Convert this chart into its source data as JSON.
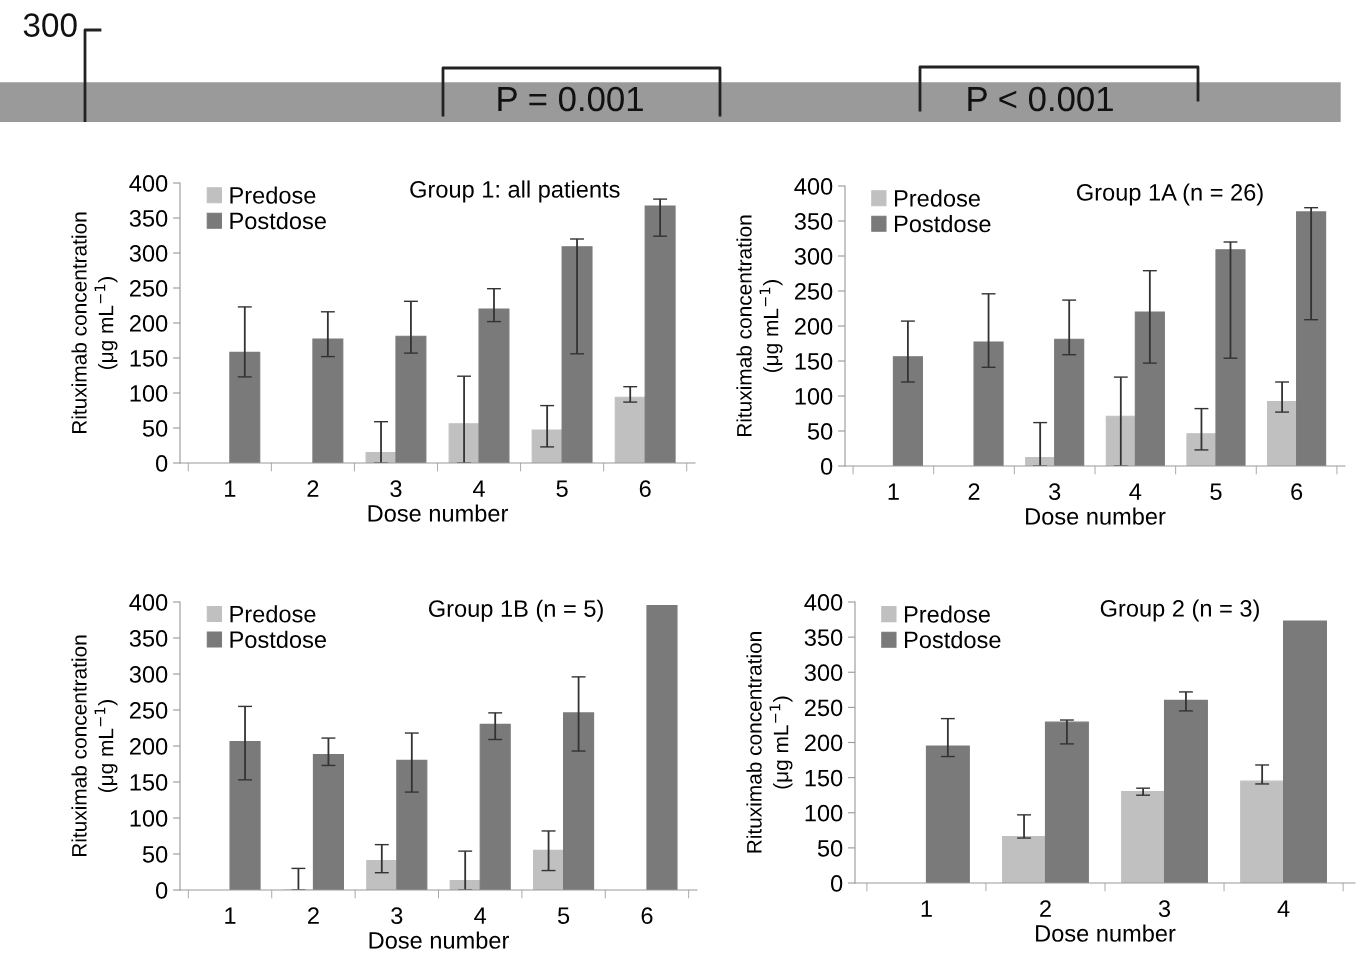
{
  "chart_data": [
    {
      "type": "other",
      "annotations": [
        "300",
        "P = 0.001",
        "P < 0.001"
      ]
    },
    {
      "type": "bar",
      "title": "Group 1: all patients",
      "xlabel": "Dose number",
      "ylabel": "Rituximab concentration\n(μg mL$^{−1}$)",
      "categories": [
        "1",
        "2",
        "3",
        "4",
        "5",
        "6"
      ],
      "ylim": [
        0,
        400
      ],
      "yticks": [
        0,
        50,
        100,
        150,
        200,
        250,
        300,
        350,
        400
      ],
      "legend": "top left",
      "grid": false,
      "series": [
        {
          "name": "Predose",
          "color": "#c0c0c0",
          "values": [
            null,
            null,
            15,
            56,
            47,
            94
          ],
          "errors": [
            null,
            null,
            [
              0,
              59
            ],
            [
              0,
              124
            ],
            [
              23,
              82
            ],
            [
              87,
              109
            ]
          ]
        },
        {
          "name": "Postdose",
          "color": "#7a7a7a",
          "values": [
            158,
            177,
            181,
            220,
            309,
            367
          ],
          "errors": [
            [
              123,
              223
            ],
            [
              152,
              216
            ],
            [
              157,
              231
            ],
            [
              202,
              249
            ],
            [
              156,
              320
            ],
            [
              324,
              377
            ]
          ]
        }
      ]
    },
    {
      "type": "bar",
      "title": "Group 1A (n = 26)",
      "xlabel": "Dose number",
      "ylabel": "Rituximab concentration\n(μg mL$^{−1}$)",
      "categories": [
        "1",
        "2",
        "3",
        "4",
        "5",
        "6"
      ],
      "ylim": [
        0,
        400
      ],
      "yticks": [
        0,
        50,
        100,
        150,
        200,
        250,
        300,
        350,
        400
      ],
      "legend": "top left",
      "grid": false,
      "series": [
        {
          "name": "Predose",
          "color": "#c0c0c0",
          "values": [
            null,
            null,
            12,
            71,
            46,
            92
          ],
          "errors": [
            null,
            null,
            [
              0,
              62
            ],
            [
              0,
              127
            ],
            [
              23,
              82
            ],
            [
              77,
              120
            ]
          ]
        },
        {
          "name": "Postdose",
          "color": "#7a7a7a",
          "values": [
            156,
            177,
            181,
            220,
            309,
            363
          ],
          "errors": [
            [
              120,
              207
            ],
            [
              141,
              246
            ],
            [
              159,
              237
            ],
            [
              147,
              279
            ],
            [
              154,
              320
            ],
            [
              209,
              369
            ]
          ]
        }
      ]
    },
    {
      "type": "bar",
      "title": "Group 1B (n = 5)",
      "xlabel": "Dose number",
      "ylabel": "Rituximab concentration\n(μg mL$^{−1}$)",
      "categories": [
        "1",
        "2",
        "3",
        "4",
        "5",
        "6"
      ],
      "ylim": [
        0,
        400
      ],
      "yticks": [
        0,
        50,
        100,
        150,
        200,
        250,
        300,
        350,
        400
      ],
      "legend": "top left",
      "grid": false,
      "series": [
        {
          "name": "Predose",
          "color": "#c0c0c0",
          "values": [
            null,
            0,
            41,
            13,
            55,
            null
          ],
          "errors": [
            null,
            [
              0,
              30
            ],
            [
              24,
              63
            ],
            [
              0,
              54
            ],
            [
              27,
              82
            ],
            null
          ]
        },
        {
          "name": "Postdose",
          "color": "#7a7a7a",
          "values": [
            206,
            188,
            180,
            230,
            246,
            395
          ],
          "errors": [
            [
              153,
              255
            ],
            [
              173,
              211
            ],
            [
              136,
              218
            ],
            [
              209,
              246
            ],
            [
              193,
              296
            ],
            null
          ]
        }
      ]
    },
    {
      "type": "bar",
      "title": "Group 2 (n = 3)",
      "xlabel": "Dose number",
      "ylabel": "Rituximab concentration\n(μg mL$^{−1}$)",
      "categories": [
        "1",
        "2",
        "3",
        "4"
      ],
      "ylim": [
        0,
        400
      ],
      "yticks": [
        0,
        50,
        100,
        150,
        200,
        250,
        300,
        350,
        400
      ],
      "legend": "top left",
      "grid": false,
      "series": [
        {
          "name": "Predose",
          "color": "#c0c0c0",
          "values": [
            null,
            66,
            130,
            145
          ],
          "errors": [
            null,
            [
              64,
              97
            ],
            [
              125,
              135
            ],
            [
              141,
              168
            ]
          ]
        },
        {
          "name": "Postdose",
          "color": "#7a7a7a",
          "values": [
            195,
            229,
            260,
            373
          ],
          "errors": [
            [
              180,
              234
            ],
            [
              198,
              232
            ],
            [
              245,
              272
            ],
            null
          ]
        }
      ]
    }
  ]
}
